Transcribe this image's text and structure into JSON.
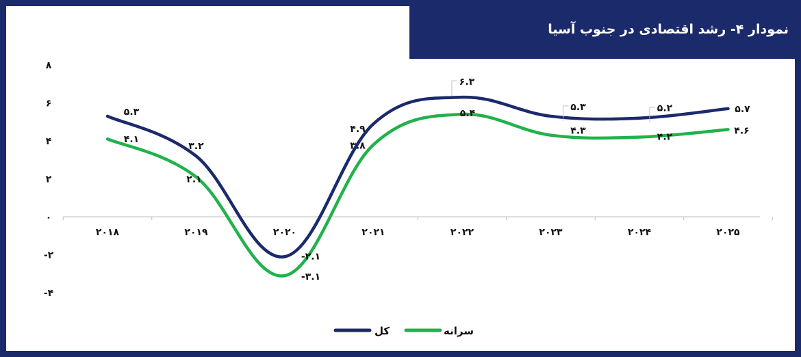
{
  "title": "نمودار ۴- رشد اقتصادی در جنوب آسیا",
  "colors": {
    "frame": "#1b2a6b",
    "series_total": "#1b2a6b",
    "series_per_capita": "#21b24b",
    "axis": "#bfbfbf"
  },
  "chart_data": {
    "type": "line",
    "categories": [
      "۲۰۱۸",
      "۲۰۱۹",
      "۲۰۲۰",
      "۲۰۲۱",
      "۲۰۲۲",
      "۲۰۲۳",
      "۲۰۲۴",
      "۲۰۲۵"
    ],
    "x": [
      2018,
      2019,
      2020,
      2021,
      2022,
      2023,
      2024,
      2025
    ],
    "series": [
      {
        "name": "کل",
        "values": [
          5.3,
          3.2,
          -2.1,
          4.9,
          6.3,
          5.3,
          5.2,
          5.7
        ],
        "labels": [
          "۵.۳",
          "۳.۲",
          "-۲.۱",
          "۴.۹",
          "۶.۳",
          "۵.۳",
          "۵.۲",
          "۵.۷"
        ]
      },
      {
        "name": "سرانه",
        "values": [
          4.1,
          2.1,
          -3.1,
          3.8,
          5.4,
          4.3,
          4.2,
          4.6
        ],
        "labels": [
          "۴.۱",
          "۲.۱",
          "-۳.۱",
          "۳.۸",
          "۵.۴",
          "۴.۳",
          "۴.۲",
          "۴.۶"
        ]
      }
    ],
    "ylim": [
      -4,
      8
    ],
    "yticks": [
      8,
      6,
      4,
      2,
      0,
      -2,
      -4
    ],
    "ytick_labels": [
      "۸",
      "۶",
      "۴",
      "۲",
      "۰",
      "-۲",
      "-۴"
    ],
    "legend_position": "bottom-center",
    "smooth": true,
    "grid": false
  }
}
